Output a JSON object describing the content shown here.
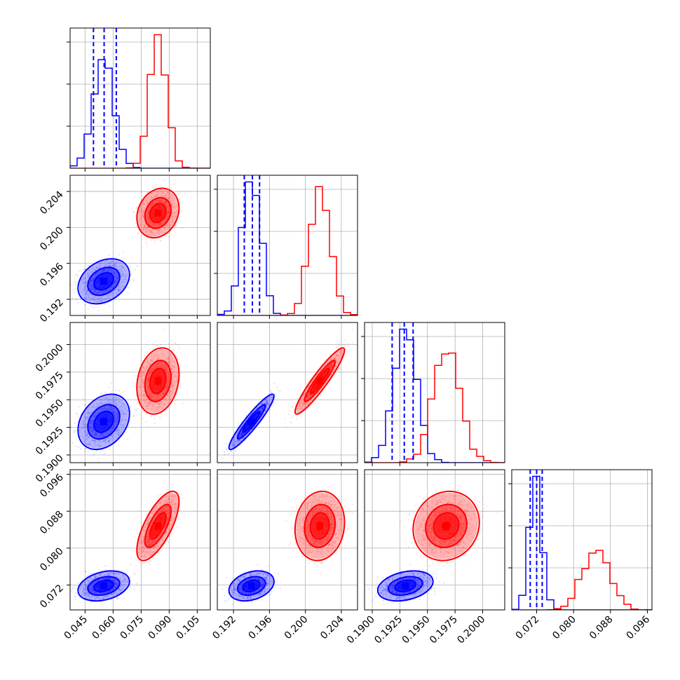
{
  "colors": {
    "model_a": "#0000ff",
    "model_b": "#ff0000",
    "grid": "#b0b0b0",
    "axes": "#000000"
  },
  "chart_data": {
    "type": "corner",
    "parameters": [
      {
        "lim": [
          0.037,
          0.112
        ],
        "ticks": [
          0.045,
          0.06,
          0.075,
          0.09,
          0.105
        ],
        "tick_labels": [
          "0.045",
          "0.060",
          "0.075",
          "0.090",
          "0.105"
        ]
      },
      {
        "lim": [
          0.1902,
          0.2058
        ],
        "ticks": [
          0.192,
          0.196,
          0.2,
          0.204
        ],
        "tick_labels": [
          "0.192",
          "0.196",
          "0.200",
          "0.204"
        ]
      },
      {
        "lim": [
          0.1893,
          0.202
        ],
        "ticks": [
          0.19,
          0.1925,
          0.195,
          0.1975,
          0.2
        ],
        "tick_labels": [
          "0.1900",
          "0.1925",
          "0.1950",
          "0.1975",
          "0.2000"
        ]
      },
      {
        "lim": [
          0.0666,
          0.097
        ],
        "ticks": [
          0.072,
          0.08,
          0.088,
          0.096
        ],
        "tick_labels": [
          "0.072",
          "0.080",
          "0.088",
          "0.096"
        ]
      }
    ],
    "series": [
      {
        "color": "#0000ff",
        "mean": [
          0.055,
          0.194,
          0.193,
          0.0718
        ],
        "std": [
          0.0055,
          0.001,
          0.001,
          0.0013
        ],
        "corr": [
          [
            1.0,
            0.3,
            0.3,
            0.3
          ],
          [
            0.3,
            1.0,
            0.93,
            0.3
          ],
          [
            0.3,
            0.93,
            1.0,
            0.3
          ],
          [
            0.3,
            0.3,
            0.3,
            1.0
          ]
        ],
        "quantiles": [
          [
            0.0495,
            0.0552,
            0.0617
          ],
          [
            0.1932,
            0.1941,
            0.1949
          ],
          [
            0.1918,
            0.1929,
            0.1937
          ],
          [
            0.0706,
            0.072,
            0.0732
          ]
        ]
      },
      {
        "color": "#ff0000",
        "mean": [
          0.084,
          0.2016,
          0.1967,
          0.0848
        ],
        "std": [
          0.0045,
          0.0011,
          0.0012,
          0.003
        ],
        "corr": [
          [
            1.0,
            0.2,
            0.2,
            0.7
          ],
          [
            0.2,
            1.0,
            0.93,
            0.1
          ],
          [
            0.2,
            0.93,
            1.0,
            0.1
          ],
          [
            0.7,
            0.1,
            0.1,
            1.0
          ]
        ]
      }
    ]
  }
}
